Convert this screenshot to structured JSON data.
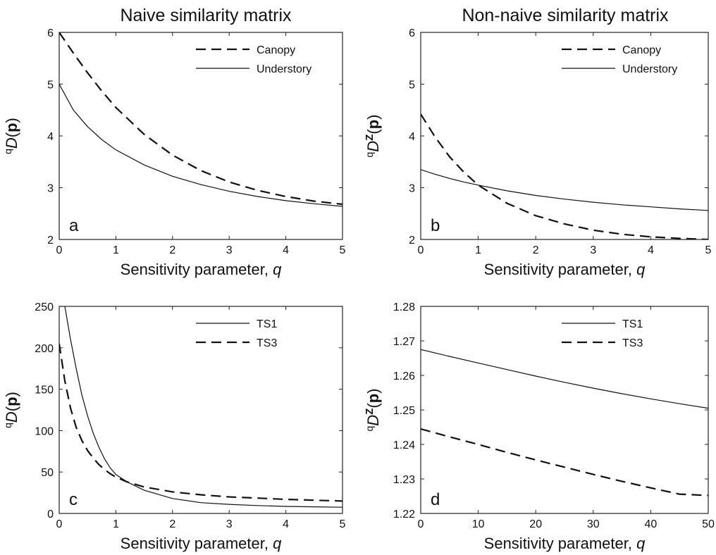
{
  "column_titles": [
    "Naive similarity matrix",
    "Non-naive similarity matrix"
  ],
  "chart_data": [
    {
      "type": "line",
      "panel_letter": "a",
      "xlabel": "Sensitivity parameter, q",
      "ylabel": "qD(p)",
      "xlim": [
        0,
        5
      ],
      "ylim": [
        2,
        6
      ],
      "xticks": [
        0,
        1,
        2,
        3,
        4,
        5
      ],
      "yticks": [
        2,
        3,
        4,
        5,
        6
      ],
      "legend_position": "top-right",
      "grid": false,
      "series": [
        {
          "name": "Canopy",
          "style": "dashed",
          "x": [
            0,
            0.25,
            0.5,
            0.75,
            1,
            1.5,
            2,
            2.5,
            3,
            3.5,
            4,
            4.5,
            5
          ],
          "y": [
            6.0,
            5.6,
            5.22,
            4.87,
            4.55,
            4.03,
            3.63,
            3.33,
            3.11,
            2.95,
            2.83,
            2.74,
            2.68
          ]
        },
        {
          "name": "Understory",
          "style": "solid",
          "x": [
            0,
            0.25,
            0.5,
            0.75,
            1,
            1.5,
            2,
            2.5,
            3,
            3.5,
            4,
            4.5,
            5
          ],
          "y": [
            5.0,
            4.5,
            4.18,
            3.93,
            3.73,
            3.44,
            3.22,
            3.06,
            2.93,
            2.83,
            2.75,
            2.69,
            2.64
          ]
        }
      ]
    },
    {
      "type": "line",
      "panel_letter": "b",
      "xlabel": "Sensitivity parameter, q",
      "ylabel": "qDZ(p)",
      "xlim": [
        0,
        5
      ],
      "ylim": [
        2,
        6
      ],
      "xticks": [
        0,
        1,
        2,
        3,
        4,
        5
      ],
      "yticks": [
        2,
        3,
        4,
        5,
        6
      ],
      "legend_position": "top-right",
      "grid": false,
      "series": [
        {
          "name": "Canopy",
          "style": "dashed",
          "x": [
            0,
            0.25,
            0.5,
            0.75,
            1,
            1.5,
            2,
            2.5,
            3,
            3.5,
            4,
            4.5,
            5
          ],
          "y": [
            4.42,
            3.98,
            3.6,
            3.3,
            3.05,
            2.7,
            2.46,
            2.3,
            2.18,
            2.1,
            2.05,
            2.02,
            2.0
          ]
        },
        {
          "name": "Understory",
          "style": "solid",
          "x": [
            0,
            0.25,
            0.5,
            0.75,
            1,
            1.5,
            2,
            2.5,
            3,
            3.5,
            4,
            4.5,
            5
          ],
          "y": [
            3.35,
            3.26,
            3.18,
            3.11,
            3.05,
            2.94,
            2.85,
            2.78,
            2.72,
            2.67,
            2.63,
            2.59,
            2.56
          ]
        }
      ]
    },
    {
      "type": "line",
      "panel_letter": "c",
      "xlabel": "Sensitivity parameter, q",
      "ylabel": "qD(p)",
      "xlim": [
        0,
        5
      ],
      "ylim": [
        0,
        250
      ],
      "xticks": [
        0,
        1,
        2,
        3,
        4,
        5
      ],
      "yticks": [
        0,
        50,
        100,
        150,
        200,
        250
      ],
      "legend_position": "top-right",
      "grid": false,
      "series": [
        {
          "name": "TS1",
          "style": "solid",
          "x": [
            0.05,
            0.1,
            0.2,
            0.3,
            0.4,
            0.5,
            0.6,
            0.7,
            0.8,
            0.9,
            1,
            1.2,
            1.5,
            2,
            2.5,
            3,
            3.5,
            4,
            4.5,
            5
          ],
          "y": [
            260,
            250,
            210,
            175,
            143,
            118,
            97,
            80,
            66,
            55,
            47,
            38,
            28,
            18,
            13,
            11,
            9.5,
            8.5,
            8,
            7.5
          ]
        },
        {
          "name": "TS3",
          "style": "dashed",
          "x": [
            0,
            0.1,
            0.2,
            0.3,
            0.4,
            0.5,
            0.6,
            0.7,
            0.8,
            0.9,
            1,
            1.2,
            1.5,
            2,
            2.5,
            3,
            3.5,
            4,
            4.5,
            5
          ],
          "y": [
            205,
            160,
            127,
            104,
            88,
            76,
            67,
            59,
            53,
            48,
            44,
            38,
            32,
            26,
            22.5,
            20,
            18.5,
            17,
            16,
            15
          ]
        }
      ]
    },
    {
      "type": "line",
      "panel_letter": "d",
      "xlabel": "Sensitivity parameter, q",
      "ylabel": "qDZ(p)",
      "xlim": [
        0,
        50
      ],
      "ylim": [
        1.22,
        1.28
      ],
      "xticks": [
        0,
        10,
        20,
        30,
        40,
        50
      ],
      "yticks": [
        1.22,
        1.23,
        1.24,
        1.25,
        1.26,
        1.27,
        1.28
      ],
      "legend_position": "top-right",
      "grid": false,
      "series": [
        {
          "name": "TS1",
          "style": "solid",
          "x": [
            0,
            5,
            10,
            15,
            20,
            25,
            30,
            35,
            40,
            45,
            50
          ],
          "y": [
            1.2675,
            1.2655,
            1.2636,
            1.2617,
            1.2598,
            1.258,
            1.2563,
            1.2547,
            1.2532,
            1.2518,
            1.2505
          ]
        },
        {
          "name": "TS3",
          "style": "dashed",
          "x": [
            0,
            5,
            10,
            15,
            20,
            25,
            30,
            35,
            40,
            45,
            50
          ],
          "y": [
            1.2445,
            1.2422,
            1.24,
            1.2377,
            1.2355,
            1.2334,
            1.2313,
            1.2293,
            1.2274,
            1.2256,
            1.2252
          ]
        }
      ]
    }
  ]
}
